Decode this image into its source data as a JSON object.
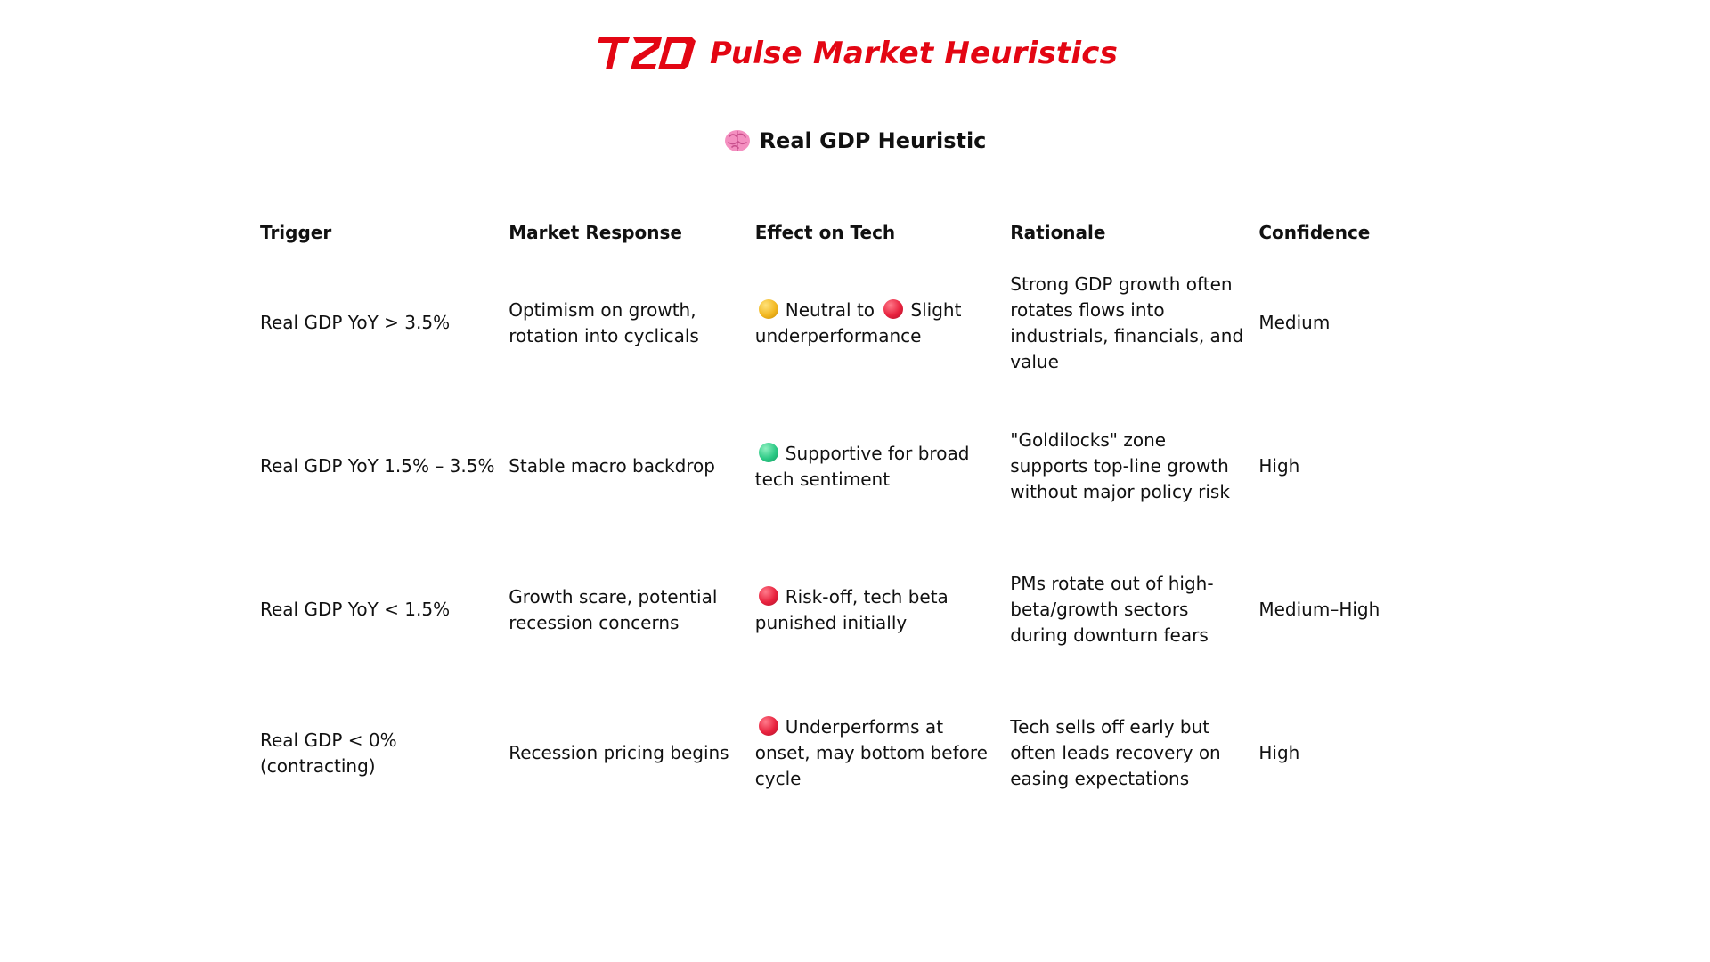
{
  "header": {
    "logo_text": "T2D",
    "title": "Pulse Market Heuristics",
    "brand_color": "#e30613"
  },
  "section": {
    "icon": "brain-icon",
    "title": "Real GDP Heuristic"
  },
  "table": {
    "columns": [
      "Trigger",
      "Market Response",
      "Effect on Tech",
      "Rationale",
      "Confidence"
    ],
    "rows": [
      {
        "trigger": "Real GDP YoY > 3.5%",
        "market_response": "Optimism on growth, rotation into cyclicals",
        "effect_dots": [
          "yellow",
          "red"
        ],
        "effect_part1": "Neutral to",
        "effect_part2": "Slight underperformance",
        "rationale": "Strong GDP growth often rotates flows into industrials, financials, and value",
        "confidence": "Medium"
      },
      {
        "trigger": "Real GDP YoY 1.5% – 3.5%",
        "market_response": "Stable macro backdrop",
        "effect_dots": [
          "green"
        ],
        "effect_part1": "Supportive for broad tech sentiment",
        "rationale": "\"Goldilocks\" zone supports top-line growth without major policy risk",
        "confidence": "High"
      },
      {
        "trigger": "Real GDP YoY < 1.5%",
        "market_response": "Growth scare, potential recession concerns",
        "effect_dots": [
          "red"
        ],
        "effect_part1": "Risk-off, tech beta punished initially",
        "rationale": "PMs rotate out of high-beta/growth sectors during downturn fears",
        "confidence": "Medium–High"
      },
      {
        "trigger": "Real GDP < 0% (contracting)",
        "market_response": "Recession pricing begins",
        "effect_dots": [
          "red"
        ],
        "effect_part1": "Underperforms at onset, may bottom before cycle",
        "rationale": "Tech sells off early but often leads recovery on easing expectations",
        "confidence": "High"
      }
    ]
  }
}
